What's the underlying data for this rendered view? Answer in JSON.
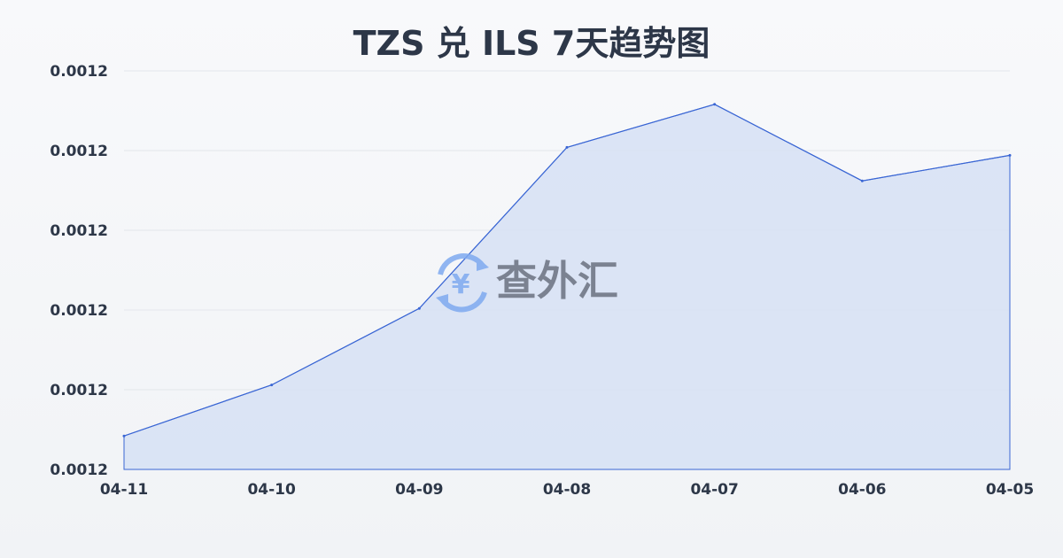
{
  "chart_data": {
    "type": "area",
    "title": "TZS 兑 ILS 7天趋势图",
    "xlabel": "",
    "ylabel": "",
    "categories": [
      "04-11",
      "04-10",
      "04-09",
      "04-08",
      "04-07",
      "04-06",
      "04-05"
    ],
    "values": [
      0.0011842,
      0.0011906,
      0.0012002,
      0.0012204,
      0.0012258,
      0.0012162,
      0.0012194
    ],
    "ylim": [
      0.00118,
      0.00123
    ],
    "yticks": [
      0.00118,
      0.00119,
      0.0012,
      0.00121,
      0.00122,
      0.00123
    ],
    "ytick_labels": [
      "0.0012",
      "0.0012",
      "0.0012",
      "0.0012",
      "0.0012",
      "0.0012"
    ],
    "grid": true,
    "line_color": "#3a66d4",
    "fill_color": "#d6e1f5"
  },
  "watermark": {
    "text": "查外汇",
    "icon": "yen-exchange-icon"
  }
}
